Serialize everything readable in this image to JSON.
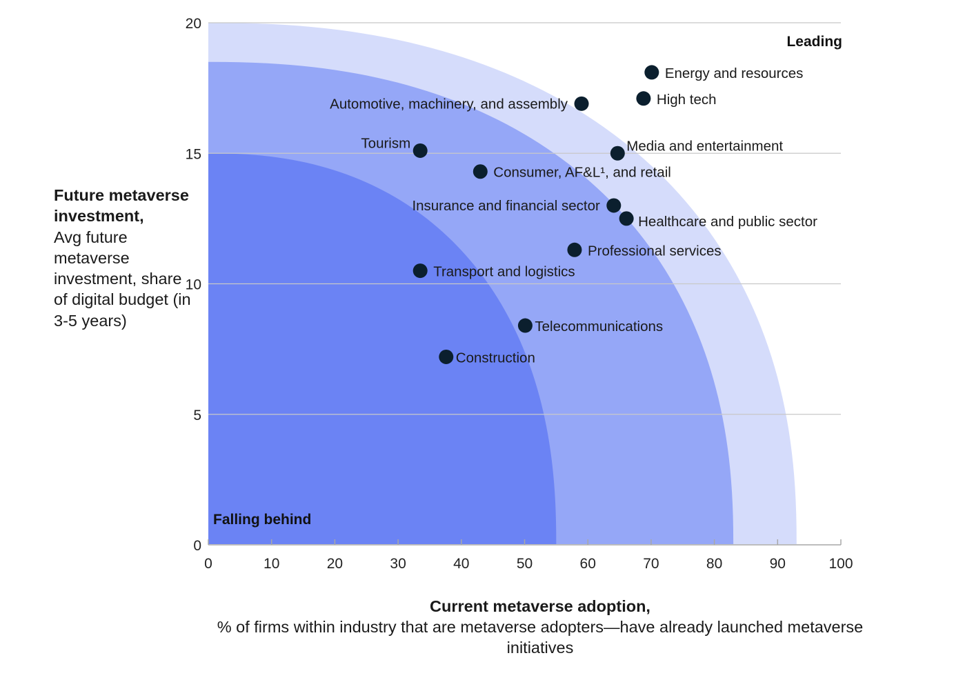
{
  "chart_data": {
    "type": "scatter",
    "title": "",
    "xlabel_title": "Current metaverse adoption,",
    "xlabel_sub": "% of firms within industry that are metaverse adopters—have already launched metaverse initiatives",
    "ylabel_title": "Future metaverse investment,",
    "ylabel_sub": "Avg future metaverse investment, share of digital budget (in 3-5 years)",
    "xlim": [
      0,
      100
    ],
    "ylim": [
      0,
      20
    ],
    "xticks": [
      0,
      10,
      20,
      30,
      40,
      50,
      60,
      70,
      80,
      90,
      100
    ],
    "yticks": [
      0,
      5,
      10,
      15,
      20
    ],
    "grid": "horizontal",
    "colors": {
      "band_inner": "#6b83f4",
      "band_middle": "#95a7f7",
      "band_outer": "#d5dcfb",
      "point": "#0b1f2e",
      "grid": "#c8c8c8"
    },
    "regions": [
      {
        "name": "inner",
        "y_intercept": 15,
        "x_intercept": 55
      },
      {
        "name": "middle",
        "y_intercept": 18.5,
        "x_intercept": 83
      },
      {
        "name": "outer",
        "y_intercept": 20,
        "x_intercept": 93
      }
    ],
    "annotations": {
      "leading": "Leading",
      "falling_behind": "Falling behind"
    },
    "points": [
      {
        "label": "Energy and resources",
        "x": 70.1,
        "y": 18.1,
        "label_pos": "right"
      },
      {
        "label": "High tech",
        "x": 68.8,
        "y": 17.1,
        "label_pos": "right"
      },
      {
        "label": "Automotive, machinery, and assembly",
        "x": 59.0,
        "y": 16.9,
        "label_pos": "left"
      },
      {
        "label": "Media and entertainment",
        "x": 64.7,
        "y": 15.0,
        "label_pos": "right-above"
      },
      {
        "label": "Tourism",
        "x": 33.5,
        "y": 15.1,
        "label_pos": "left-above"
      },
      {
        "label": "Consumer, AF&L¹, and retail",
        "x": 43.0,
        "y": 14.3,
        "label_pos": "right"
      },
      {
        "label": "Insurance and financial sector",
        "x": 64.1,
        "y": 13.0,
        "label_pos": "left"
      },
      {
        "label": "Healthcare and public sector",
        "x": 66.1,
        "y": 12.5,
        "label_pos": "right-below"
      },
      {
        "label": "Professional services",
        "x": 57.9,
        "y": 11.3,
        "label_pos": "right"
      },
      {
        "label": "Transport and logistics",
        "x": 33.5,
        "y": 10.5,
        "label_pos": "right"
      },
      {
        "label": "Telecommunications",
        "x": 50.1,
        "y": 8.4,
        "label_pos": "right-tight"
      },
      {
        "label": "Construction",
        "x": 37.6,
        "y": 7.2,
        "label_pos": "right-tight"
      }
    ]
  }
}
